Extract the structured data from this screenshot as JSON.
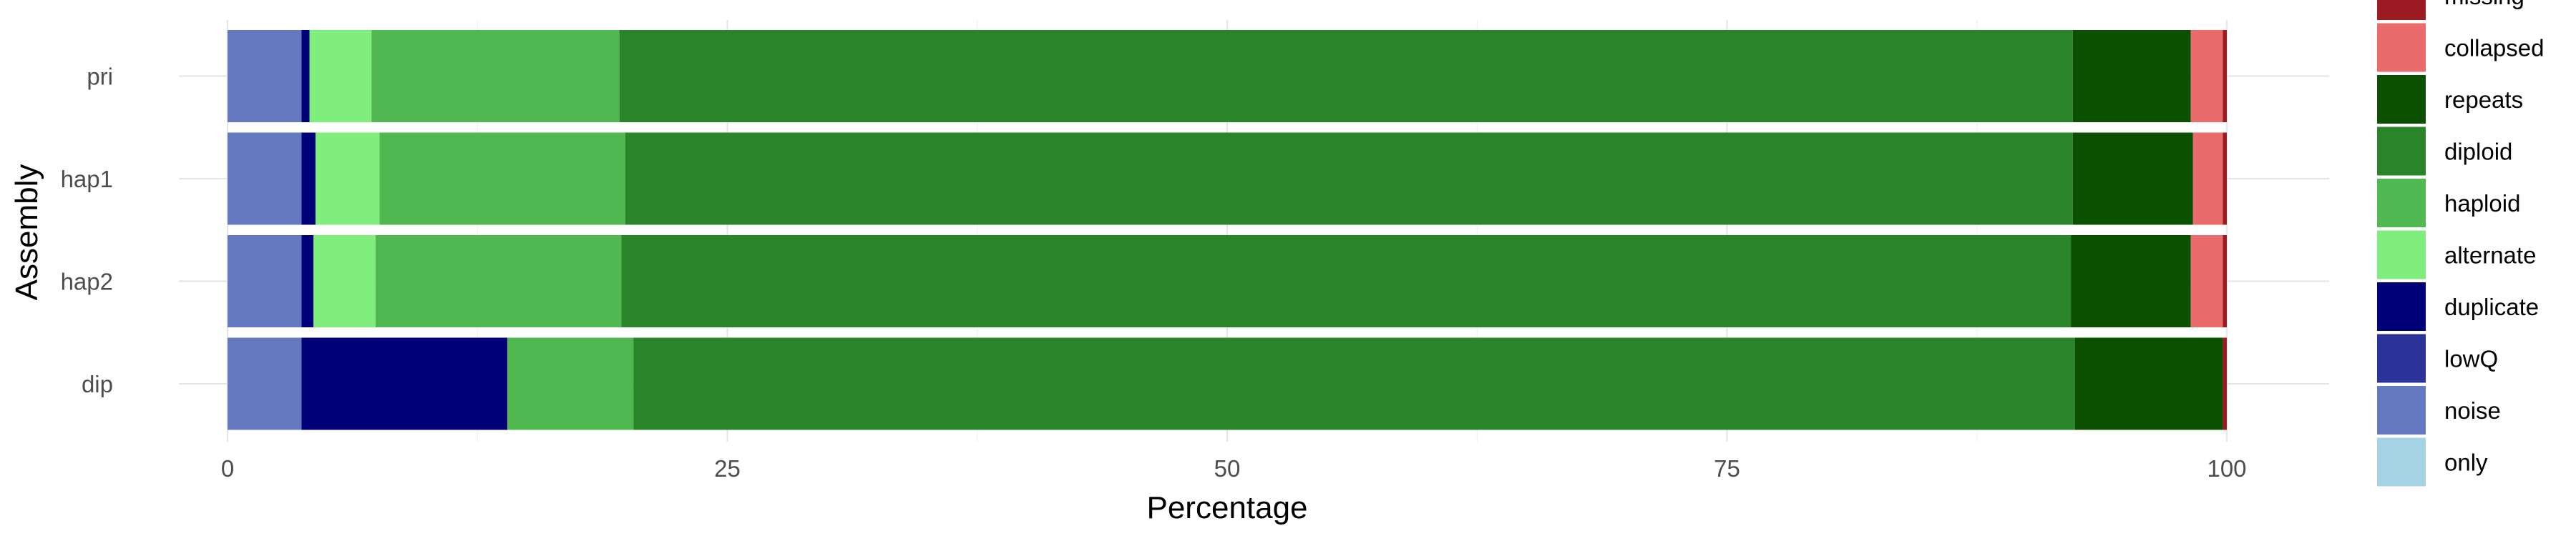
{
  "chart_data": {
    "type": "bar",
    "orientation": "horizontal",
    "stacked": true,
    "xlabel": "Percentage",
    "ylabel": "Assembly",
    "xlim": [
      0,
      100
    ],
    "xticks": [
      "0",
      "25",
      "50",
      "75",
      "100"
    ],
    "grid": true,
    "legend_position": "right",
    "categories": [
      "pri",
      "hap1",
      "hap2",
      "dip"
    ],
    "series": [
      {
        "name": "noise",
        "color": "#6479BF",
        "values": [
          3.7,
          3.7,
          3.7,
          3.7
        ]
      },
      {
        "name": "lowQ",
        "color": "#2B3399",
        "values": [
          0.0,
          0.0,
          0.0,
          0.0
        ]
      },
      {
        "name": "duplicate",
        "color": "#000077",
        "values": [
          0.4,
          0.7,
          0.6,
          10.3
        ]
      },
      {
        "name": "alternate",
        "color": "#80EE7D",
        "values": [
          3.1,
          3.2,
          3.1,
          0.0
        ]
      },
      {
        "name": "haploid",
        "color": "#51B750",
        "values": [
          12.4,
          12.3,
          12.3,
          6.3
        ]
      },
      {
        "name": "diploid",
        "color": "#2A8429",
        "values": [
          72.7,
          72.4,
          72.5,
          72.1
        ]
      },
      {
        "name": "repeats",
        "color": "#0B5000",
        "values": [
          5.9,
          6.0,
          6.0,
          7.4
        ]
      },
      {
        "name": "collapsed",
        "color": "#EA6B6B",
        "values": [
          1.6,
          1.5,
          1.6,
          0.0
        ]
      },
      {
        "name": "missing",
        "color": "#9D1C24",
        "values": [
          0.2,
          0.2,
          0.2,
          0.2
        ]
      },
      {
        "name": "only",
        "color": "#A5D3E3",
        "values": [
          0.0,
          0.0,
          0.0,
          0.0
        ]
      }
    ],
    "legend_order": [
      "missing",
      "collapsed",
      "repeats",
      "diploid",
      "haploid",
      "alternate",
      "duplicate",
      "lowQ",
      "noise",
      "only"
    ]
  }
}
